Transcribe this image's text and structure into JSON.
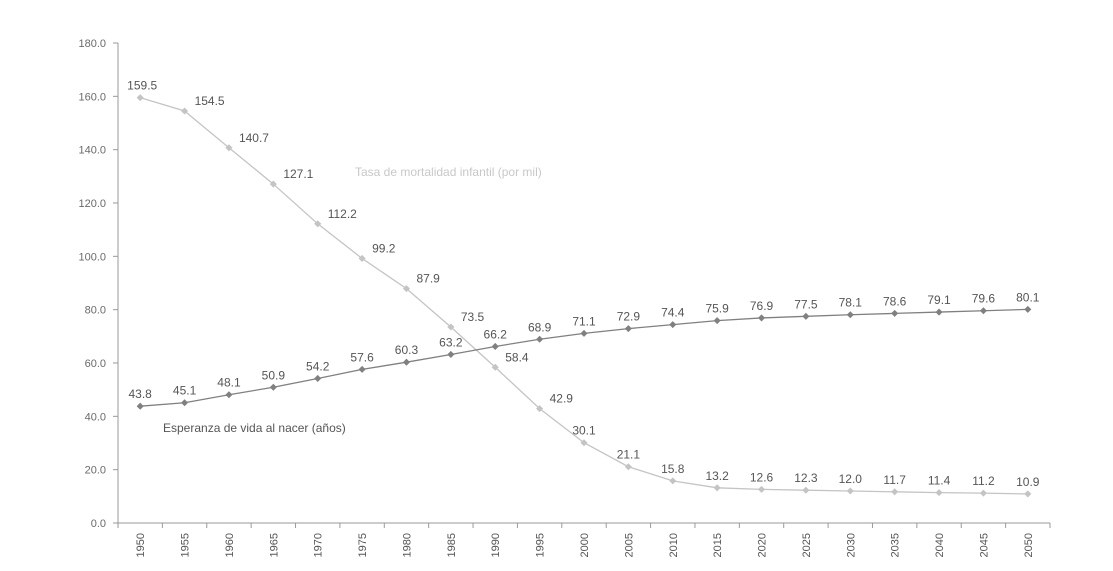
{
  "chart_data": {
    "type": "line",
    "categories": [
      "1950",
      "1955",
      "1960",
      "1965",
      "1970",
      "1975",
      "1980",
      "1985",
      "1990",
      "1995",
      "2000",
      "2005",
      "2010",
      "2015",
      "2020",
      "2025",
      "2030",
      "2035",
      "2040",
      "2045",
      "2050"
    ],
    "ylim": [
      0,
      180
    ],
    "yticks": [
      "0.0",
      "20.0",
      "40.0",
      "60.0",
      "80.0",
      "100.0",
      "120.0",
      "140.0",
      "160.0",
      "180.0"
    ],
    "grid": false,
    "series": [
      {
        "name": "Tasa de mortalidad infantil (por mil)",
        "color": "#c4c4c4",
        "values": [
          159.5,
          154.5,
          140.7,
          127.1,
          112.2,
          99.2,
          87.9,
          73.5,
          58.4,
          42.9,
          30.1,
          21.1,
          15.8,
          13.2,
          12.6,
          12.3,
          12.0,
          11.7,
          11.4,
          11.2,
          10.9
        ],
        "labels": [
          "159.5",
          "154.5",
          "140.7",
          "127.1",
          "112.2",
          "99.2",
          "87.9",
          "73.5",
          "58.4",
          "42.9",
          "30.1",
          "21.1",
          "15.8",
          "13.2",
          "12.6",
          "12.3",
          "12.0",
          "11.7",
          "11.4",
          "11.2",
          "10.9"
        ]
      },
      {
        "name": "Esperanza de vida al nacer (años)",
        "color": "#808080",
        "values": [
          43.8,
          45.1,
          48.1,
          50.9,
          54.2,
          57.6,
          60.3,
          63.2,
          66.2,
          68.9,
          71.1,
          72.9,
          74.4,
          75.9,
          76.9,
          77.5,
          78.1,
          78.6,
          79.1,
          79.6,
          80.1
        ],
        "labels": [
          "43.8",
          "45.1",
          "48.1",
          "50.9",
          "54.2",
          "57.6",
          "60.3",
          "63.2",
          "66.2",
          "68.9",
          "71.1",
          "72.9",
          "74.4",
          "75.9",
          "76.9",
          "77.5",
          "78.1",
          "78.6",
          "79.1",
          "79.6",
          "80.1"
        ]
      }
    ]
  }
}
